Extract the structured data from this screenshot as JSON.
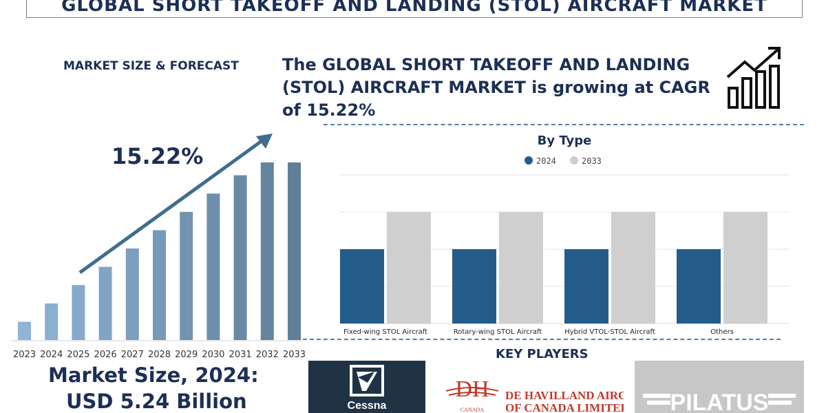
{
  "header": {
    "title": "GLOBAL SHORT TAKEOFF AND LANDING (STOL) AIRCRAFT MARKET"
  },
  "left_panel": {
    "section_label": "MARKET SIZE & FORECAST",
    "cagr_label": "15.22%",
    "market_size_line1": "Market Size, 2024:",
    "market_size_line2": "USD 5.24 Billion"
  },
  "headline": "The GLOBAL SHORT TAKEOFF AND LANDING (STOL) AIRCRAFT MARKET is growing at CAGR of 15.22%",
  "key_players": {
    "label": "KEY PLAYERS",
    "logos": [
      {
        "name": "Cessna",
        "text": "Cessna"
      },
      {
        "name": "De Havilland",
        "text_line1": "DE HAVILLAND AIRCRAFT",
        "text_line2": "OF CANADA LIMITED",
        "mark": "DH",
        "mark_sub": "CANADA"
      },
      {
        "name": "Pilatus",
        "text": "PILATUS"
      }
    ]
  },
  "colors": {
    "navy": "#1c2f55",
    "bar_2024": "#245c8a",
    "bar_2033": "#cfcfcf",
    "forecast_light": "#8fb4d6",
    "forecast_dark": "#5f7f99",
    "dash": "#4f7ea6"
  },
  "chart_data": [
    {
      "type": "bar",
      "categories": [
        "2023",
        "2024",
        "2025",
        "2026",
        "2027",
        "2028",
        "2029",
        "2030",
        "2031",
        "2032",
        "2033"
      ],
      "values": [
        1.0,
        2.0,
        3.0,
        4.0,
        5.0,
        6.0,
        7.0,
        8.0,
        9.0,
        9.7,
        9.7
      ],
      "annotation": "15.22%",
      "title": "",
      "xlabel": "",
      "ylabel": "",
      "grid": false
    },
    {
      "type": "bar",
      "title": "By Type",
      "categories": [
        "Fixed-wing STOL Aircraft",
        "Rotary-wing STOL Aircraft",
        "Hybrid VTOL-STOL Aircraft",
        "Others"
      ],
      "series": [
        {
          "name": "2024",
          "values": [
            2,
            2,
            2,
            2
          ]
        },
        {
          "name": "2033",
          "values": [
            3,
            3,
            3,
            3
          ]
        }
      ],
      "ylim": [
        0,
        4
      ],
      "grid": true,
      "legend": "top-center"
    }
  ]
}
